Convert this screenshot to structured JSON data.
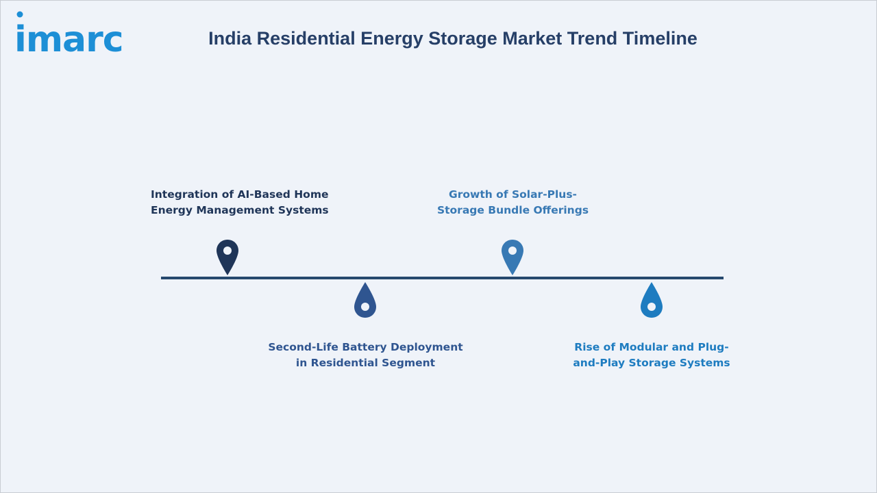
{
  "brand": {
    "logo_text": "imarc"
  },
  "title": "India Residential Energy Storage Market Trend Timeline",
  "colors": {
    "background": "#eff3f9",
    "axis": "#26486e",
    "logo": "#1d8fd6"
  },
  "milestones": [
    {
      "line1": "Integration of AI-Based Home",
      "line2": "Energy Management Systems",
      "position": "above",
      "pin_color": "#1f3558",
      "text_color": "#1f3558"
    },
    {
      "line1": "Second-Life Battery Deployment",
      "line2": "in Residential Segment",
      "position": "below",
      "pin_color": "#2f5590",
      "text_color": "#2f5590"
    },
    {
      "line1": "Growth of Solar-Plus-",
      "line2": "Storage Bundle Offerings",
      "position": "above",
      "pin_color": "#3879b4",
      "text_color": "#3879b4"
    },
    {
      "line1": "Rise of Modular and Plug-",
      "line2": "and-Play Storage Systems",
      "position": "below",
      "pin_color": "#1e7cc0",
      "text_color": "#1e7cc0"
    }
  ]
}
